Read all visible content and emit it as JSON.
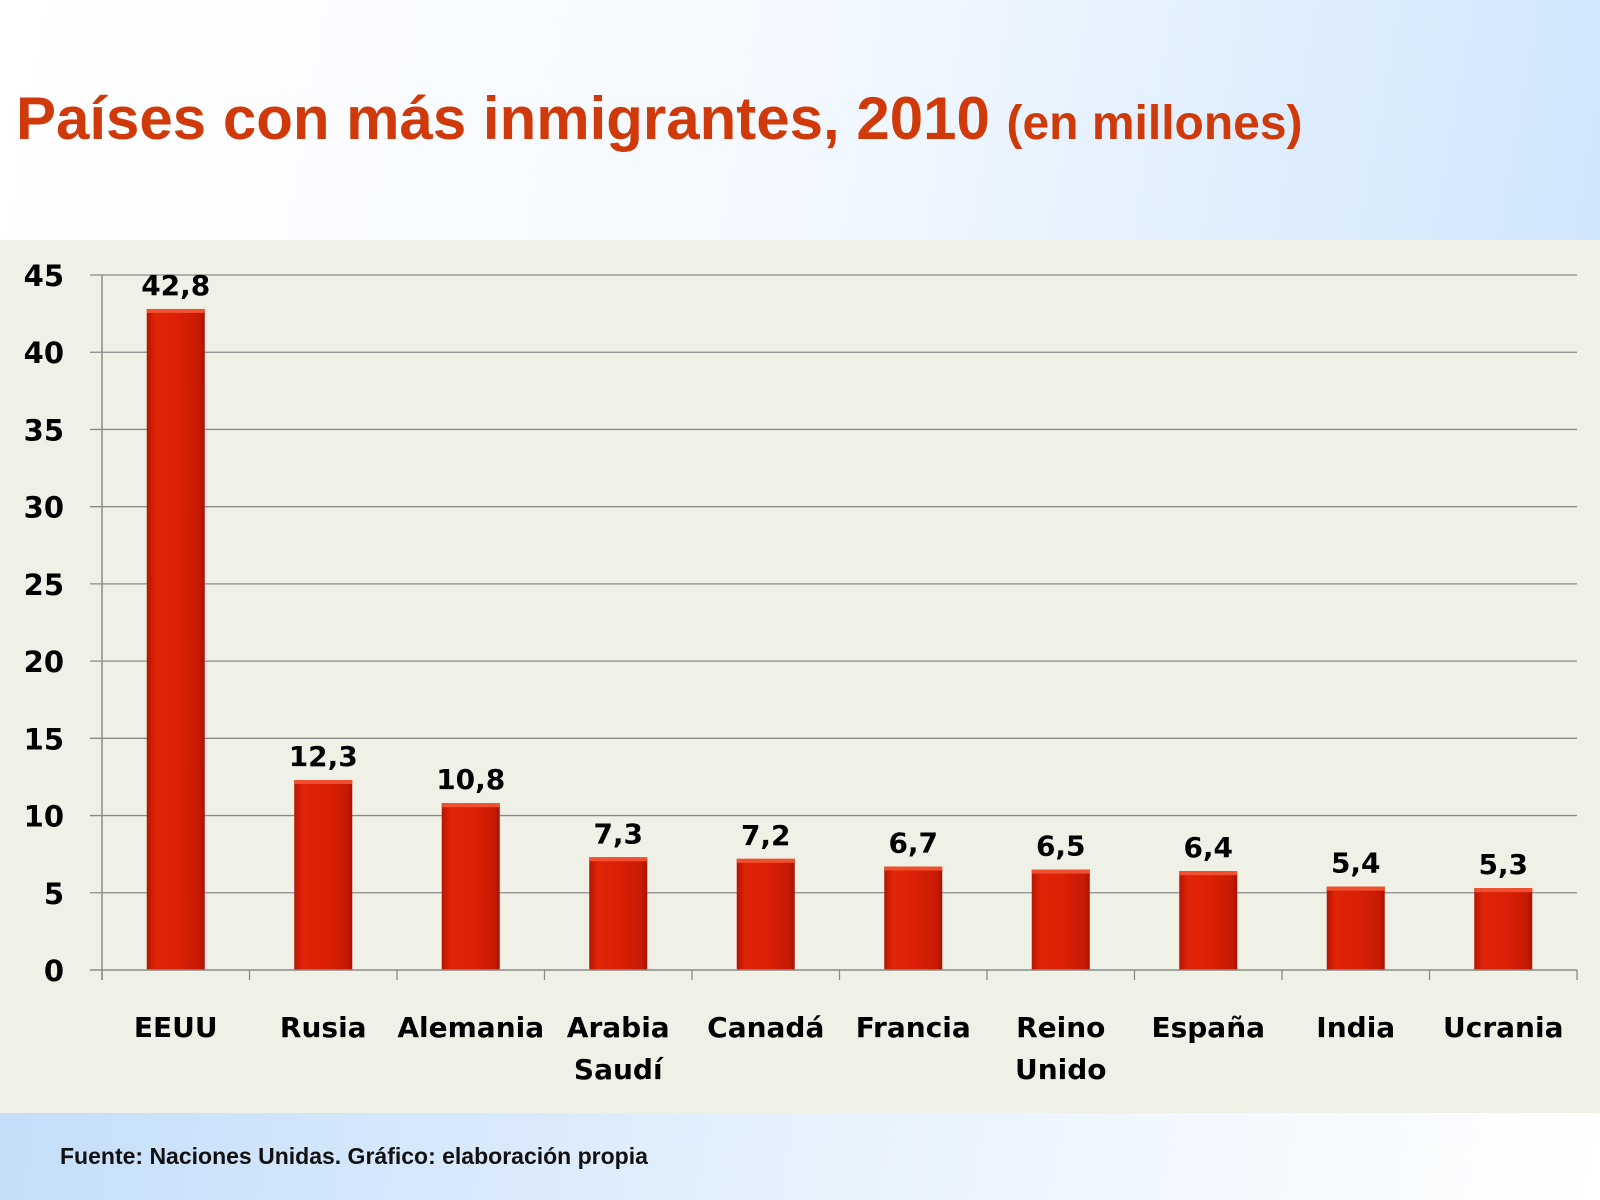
{
  "title": {
    "main": "Países con más inmigrantes, 2010",
    "sub": "(en millones)"
  },
  "source": "Fuente: Naciones Unidas. Gráfico: elaboración propia",
  "chart_data": {
    "type": "bar",
    "title": "Países con más inmigrantes, 2010 (en millones)",
    "categories": [
      [
        "EEUU"
      ],
      [
        "Rusia"
      ],
      [
        "Alemania"
      ],
      [
        "Arabia",
        "Saudí"
      ],
      [
        "Canadá"
      ],
      [
        "Francia"
      ],
      [
        "Reino",
        "Unido"
      ],
      [
        "España"
      ],
      [
        "India"
      ],
      [
        "Ucrania"
      ]
    ],
    "values": [
      42.8,
      12.3,
      10.8,
      7.3,
      7.2,
      6.7,
      6.5,
      6.4,
      5.4,
      5.3
    ],
    "data_labels": [
      "42,8",
      "12,3",
      "10,8",
      "7,3",
      "7,2",
      "6,7",
      "6,5",
      "6,4",
      "5,4",
      "5,3"
    ],
    "yticks": [
      "0",
      "5",
      "10",
      "15",
      "20",
      "25",
      "30",
      "35",
      "40",
      "45"
    ],
    "ylim": [
      0,
      45
    ],
    "grid": true,
    "bar_color": "#d81e05",
    "title_color": "#d03a0a"
  }
}
